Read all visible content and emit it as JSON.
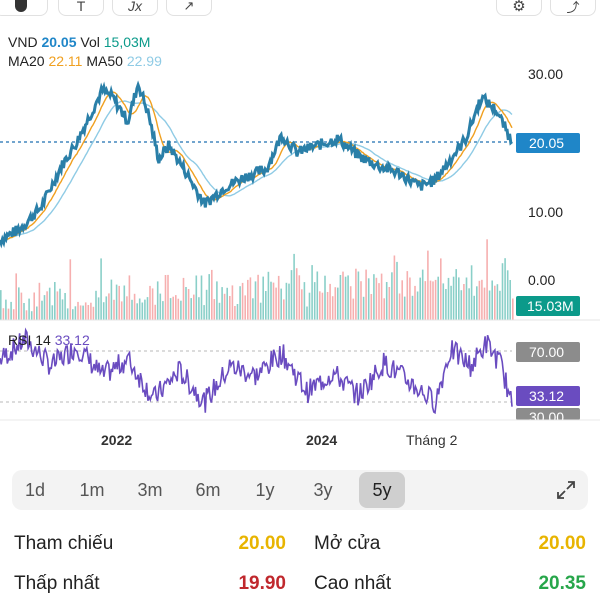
{
  "colors": {
    "price_line": "#2a7fa8",
    "ma20": "#f0a020",
    "ma50": "#8fcbe5",
    "price_tag": "#1f86c8",
    "volume_tag": "#0b9a8a",
    "rsi_line": "#6a4cc0",
    "rsi_tag": "#6a4cc0",
    "rsi_level_tag": "#8c8c8c",
    "up": "#2aa79b",
    "down": "#ee6e6e",
    "ref_value": "#e8b400",
    "low_value": "#c0282d",
    "high_value": "#27a64a"
  },
  "toolbar": {
    "icons": [
      "drawing-tool-icon",
      "text-tool-icon",
      "formula-icon",
      "trend-icon",
      "settings-icon",
      "share-icon"
    ],
    "labels": {
      "text": "T",
      "formula": "Jx"
    }
  },
  "legend": {
    "symbol": "VND",
    "price": "20.05",
    "vol_label": "Vol",
    "vol": "15,03M",
    "ma20_label": "MA20",
    "ma20": "22.11",
    "ma50_label": "MA50",
    "ma50": "22.99"
  },
  "price_axis": {
    "labels": [
      "30.00",
      "20.05",
      "10.00",
      "0.00"
    ],
    "last_price": "20.05"
  },
  "volume": {
    "last": "15.03M"
  },
  "rsi": {
    "label": "RSI 14",
    "value": "33.12",
    "levels": [
      "70.00",
      "30.00"
    ]
  },
  "time_axis": {
    "labels": [
      "2022",
      "2024",
      "Tháng 2"
    ]
  },
  "ranges": {
    "items": [
      "1d",
      "1m",
      "3m",
      "6m",
      "1y",
      "3y",
      "5y"
    ],
    "active": "5y"
  },
  "stats": {
    "ref_label": "Tham chiếu",
    "ref_value": "20.00",
    "open_label": "Mở cửa",
    "open_value": "20.00",
    "low_label": "Thấp nhất",
    "low_value": "19.90",
    "high_label": "Cao nhất",
    "high_value": "20.35"
  },
  "chart_data": {
    "type": "line",
    "price_ylim": [
      0,
      30
    ],
    "price_points": [
      [
        0,
        5.8
      ],
      [
        0.04,
        7.5
      ],
      [
        0.08,
        10.5
      ],
      [
        0.12,
        16.5
      ],
      [
        0.15,
        20.0
      ],
      [
        0.18,
        24.5
      ],
      [
        0.2,
        27.5
      ],
      [
        0.22,
        26.5
      ],
      [
        0.25,
        23.0
      ],
      [
        0.27,
        28.5
      ],
      [
        0.29,
        24.0
      ],
      [
        0.31,
        17.5
      ],
      [
        0.33,
        19.5
      ],
      [
        0.36,
        16.0
      ],
      [
        0.4,
        11.0
      ],
      [
        0.44,
        13.5
      ],
      [
        0.48,
        15.0
      ],
      [
        0.52,
        16.0
      ],
      [
        0.55,
        21.0
      ],
      [
        0.58,
        18.5
      ],
      [
        0.62,
        19.5
      ],
      [
        0.66,
        20.5
      ],
      [
        0.7,
        18.0
      ],
      [
        0.74,
        16.5
      ],
      [
        0.78,
        15.5
      ],
      [
        0.82,
        13.5
      ],
      [
        0.85,
        14.5
      ],
      [
        0.88,
        17.5
      ],
      [
        0.91,
        20.5
      ],
      [
        0.94,
        26.5
      ],
      [
        0.97,
        24.5
      ],
      [
        1.0,
        20.05
      ]
    ],
    "rsi_ylim": [
      25,
      80
    ],
    "rsi_points": [
      [
        0,
        62
      ],
      [
        0.05,
        74
      ],
      [
        0.1,
        58
      ],
      [
        0.15,
        70
      ],
      [
        0.2,
        52
      ],
      [
        0.25,
        62
      ],
      [
        0.3,
        38
      ],
      [
        0.35,
        55
      ],
      [
        0.4,
        36
      ],
      [
        0.45,
        58
      ],
      [
        0.5,
        52
      ],
      [
        0.55,
        66
      ],
      [
        0.6,
        42
      ],
      [
        0.65,
        54
      ],
      [
        0.7,
        40
      ],
      [
        0.75,
        60
      ],
      [
        0.8,
        48
      ],
      [
        0.85,
        36
      ],
      [
        0.88,
        68
      ],
      [
        0.92,
        58
      ],
      [
        0.95,
        72
      ],
      [
        0.98,
        58
      ],
      [
        1.0,
        33.12
      ]
    ]
  }
}
